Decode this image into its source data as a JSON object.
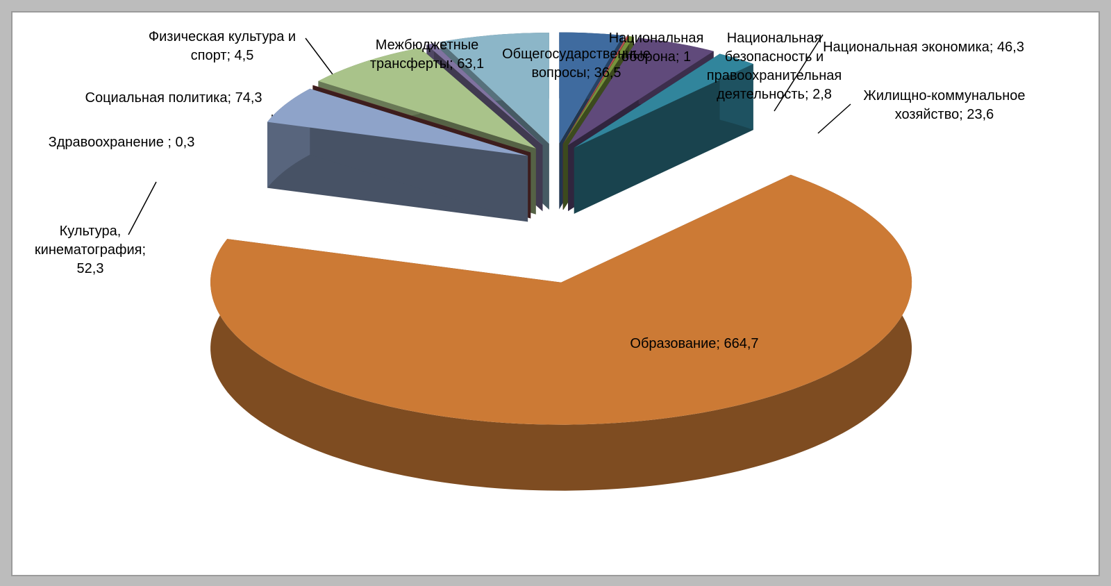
{
  "chart_data": {
    "type": "pie",
    "labels": [
      "Общегосударственные вопросы; 36,5",
      "Национальная оборона; 1",
      "Национальная безопасность и правоохранительная деятельность; 2,8",
      "Национальная экономика; 46,3",
      "Жилищно-коммунальное хозяйство; 23,6",
      "Образование; 664,7",
      "Культура, кинематография; 52,3",
      "Здравоохранение ; 0,3",
      "Социальная политика; 74,3",
      "Физическая культура и спорт; 4,5",
      "Межбюджетные трансферты; 63,1"
    ],
    "values": [
      36.5,
      1,
      2.8,
      46.3,
      23.6,
      664.7,
      52.3,
      0.3,
      74.3,
      4.5,
      63.1
    ],
    "colors": [
      "#3f6b9f",
      "#c0504d",
      "#77933c",
      "#604a7b",
      "#31859c",
      "#cc7a35",
      "#8ea3c9",
      "#7a3a3a",
      "#a9c38a",
      "#8073a0",
      "#8cb6c8"
    ]
  }
}
